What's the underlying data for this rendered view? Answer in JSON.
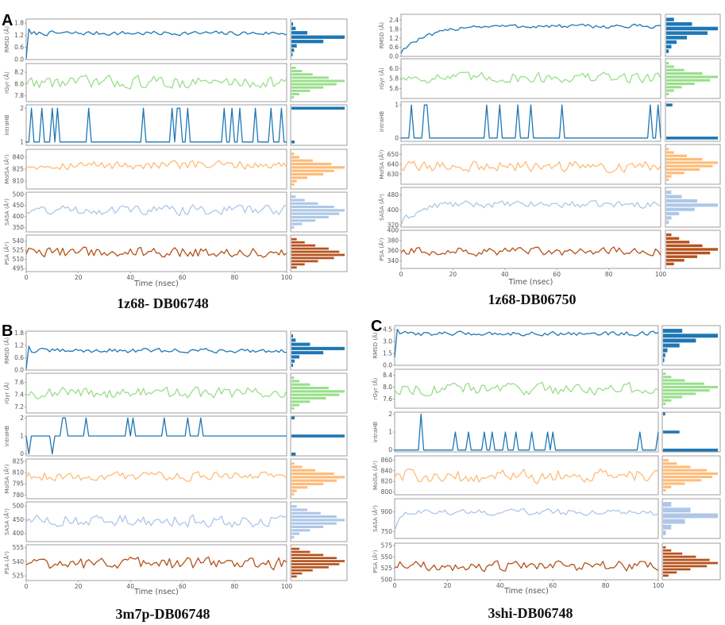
{
  "chart_data": [
    {
      "type": "line",
      "panel_label": "A",
      "caption": "1z68- DB06748",
      "xlabel": "Time (nsec)",
      "xlim": [
        0,
        100
      ],
      "xticks": [
        "0",
        "20",
        "40",
        "60",
        "80",
        "100"
      ],
      "subplots": [
        {
          "ylabel": "RMSD (Å)",
          "color": "#1f77b4",
          "ylim": [
            0,
            2.0
          ],
          "yticks": [
            "0.0",
            "0.6",
            "1.2",
            "1.8"
          ],
          "mean": 1.3,
          "amp": 0.12,
          "start": 0.05,
          "hist_bins": [
            0.02,
            0.05,
            0.1,
            0.6,
            1.0,
            0.3,
            0.08,
            0.03
          ]
        },
        {
          "ylabel": "rGyr (Å)",
          "color": "#98df8a",
          "ylim": [
            7.7,
            8.35
          ],
          "yticks": [
            "7.8",
            "8.0",
            "8.2"
          ],
          "mean": 8.03,
          "amp": 0.12,
          "hist_bins": [
            0.05,
            0.15,
            0.35,
            0.6,
            0.85,
            1.0,
            0.7,
            0.4,
            0.2,
            0.08
          ]
        },
        {
          "ylabel": "intraHB",
          "color": "#1f77b4",
          "ylim": [
            0.9,
            2.1
          ],
          "yticks": [
            "1",
            "2"
          ],
          "discrete": [
            1,
            2
          ],
          "hist_bins": [
            0.06,
            1.0
          ]
        },
        {
          "ylabel": "MolSA (Å²)",
          "color": "#ffbb78",
          "ylim": [
            800,
            850
          ],
          "yticks": [
            "810",
            "825",
            "840"
          ],
          "mean": 830,
          "amp": 6,
          "hist_bins": [
            0.05,
            0.1,
            0.3,
            0.6,
            0.8,
            1.0,
            0.75,
            0.4,
            0.15,
            0.05
          ]
        },
        {
          "ylabel": "SASA (Å²)",
          "color": "#aec7e8",
          "ylim": [
            330,
            510
          ],
          "yticks": [
            "350",
            "400",
            "450",
            "500"
          ],
          "mean": 430,
          "amp": 25,
          "hist_bins": [
            0.05,
            0.2,
            0.45,
            0.7,
            0.9,
            1.0,
            0.8,
            0.5,
            0.25,
            0.08
          ]
        },
        {
          "ylabel": "PSA (Å²)",
          "color": "#b5521c",
          "ylim": [
            490,
            550
          ],
          "yticks": [
            "495",
            "510",
            "525",
            "540"
          ],
          "mean": 522,
          "amp": 9,
          "hist_bins": [
            0.1,
            0.25,
            0.5,
            0.8,
            1.0,
            0.9,
            0.7,
            0.45,
            0.25,
            0.1
          ]
        }
      ]
    },
    {
      "type": "line",
      "panel_label": "",
      "caption": "1z68-DB06750",
      "xlabel": "Time (nsec)",
      "xlim": [
        0,
        100
      ],
      "xticks": [
        "0",
        "20",
        "40",
        "60",
        "80",
        "100"
      ],
      "subplots": [
        {
          "ylabel": "RMSD (Å)",
          "color": "#1f77b4",
          "ylim": [
            0,
            2.8
          ],
          "yticks": [
            "0.0",
            "0.6",
            "1.2",
            "1.8",
            "2.4"
          ],
          "mean": 2.0,
          "amp": 0.15,
          "start": 0.2,
          "rise": 25,
          "hist_bins": [
            0.05,
            0.1,
            0.2,
            0.4,
            0.8,
            1.0,
            0.5,
            0.15
          ]
        },
        {
          "ylabel": "rGyr (Å)",
          "color": "#98df8a",
          "ylim": [
            5.4,
            6.2
          ],
          "yticks": [
            "5.6",
            "5.8",
            "6.0"
          ],
          "mean": 5.82,
          "amp": 0.12,
          "hist_bins": [
            0.05,
            0.15,
            0.3,
            0.55,
            0.85,
            1.0,
            0.7,
            0.35,
            0.15,
            0.05
          ]
        },
        {
          "ylabel": "intraHB",
          "color": "#1f77b4",
          "ylim": [
            -0.1,
            1.1
          ],
          "yticks": [
            "0",
            "1"
          ],
          "discrete": [
            0,
            1
          ],
          "hist_bins": [
            1.0,
            0.12
          ]
        },
        {
          "ylabel": "MolSA (Å²)",
          "color": "#ffbb78",
          "ylim": [
            620,
            660
          ],
          "yticks": [
            "630",
            "640",
            "650"
          ],
          "mean": 638,
          "amp": 6,
          "hist_bins": [
            0.05,
            0.1,
            0.35,
            0.65,
            0.9,
            1.0,
            0.7,
            0.4,
            0.15,
            0.05
          ]
        },
        {
          "ylabel": "SASA (Å²)",
          "color": "#aec7e8",
          "ylim": [
            310,
            520
          ],
          "yticks": [
            "320",
            "400",
            "480"
          ],
          "mean": 430,
          "amp": 20,
          "start": 320,
          "rise": 15,
          "hist_bins": [
            0.05,
            0.1,
            0.25,
            0.55,
            1.0,
            0.6,
            0.3,
            0.1
          ]
        },
        {
          "ylabel": "PSA (Å²)",
          "color": "#b5521c",
          "ylim": [
            325,
            400
          ],
          "yticks": [
            "340",
            "360",
            "380",
            "400"
          ],
          "mean": 358,
          "amp": 9,
          "hist_bins": [
            0.15,
            0.35,
            0.6,
            0.85,
            1.0,
            0.7,
            0.45,
            0.25,
            0.1
          ]
        }
      ]
    },
    {
      "type": "line",
      "panel_label": "B",
      "caption": "3m7p-DB06748",
      "xlabel": "Time (nsec)",
      "xlim": [
        0,
        100
      ],
      "xticks": [
        "0",
        "20",
        "40",
        "60",
        "80",
        "100"
      ],
      "subplots": [
        {
          "ylabel": "RMSD (Å)",
          "color": "#1f77b4",
          "ylim": [
            0,
            1.9
          ],
          "yticks": [
            "0.0",
            "0.6",
            "1.2",
            "1.8"
          ],
          "mean": 0.95,
          "amp": 0.12,
          "start": 0.05,
          "hist_bins": [
            0.03,
            0.06,
            0.15,
            0.6,
            1.0,
            0.35,
            0.08,
            0.03
          ]
        },
        {
          "ylabel": "rGyr (Å)",
          "color": "#98df8a",
          "ylim": [
            7.1,
            7.75
          ],
          "yticks": [
            "7.2",
            "7.4",
            "7.6"
          ],
          "mean": 7.43,
          "amp": 0.1,
          "hist_bins": [
            0.05,
            0.15,
            0.35,
            0.65,
            0.9,
            1.0,
            0.7,
            0.35,
            0.15,
            0.05
          ]
        },
        {
          "ylabel": "intraHB",
          "color": "#1f77b4",
          "ylim": [
            -0.1,
            2.1
          ],
          "yticks": [
            "0",
            "1",
            "2"
          ],
          "discrete": [
            1,
            2,
            0
          ],
          "hist_bins": [
            0.08,
            1.0,
            0.06
          ]
        },
        {
          "ylabel": "MolSA (Å²)",
          "color": "#ffbb78",
          "ylim": [
            775,
            828
          ],
          "yticks": [
            "780",
            "795",
            "810",
            "825"
          ],
          "mean": 805,
          "amp": 7,
          "hist_bins": [
            0.05,
            0.1,
            0.3,
            0.6,
            0.85,
            1.0,
            0.8,
            0.45,
            0.2,
            0.05
          ]
        },
        {
          "ylabel": "SASA (Å²)",
          "color": "#aec7e8",
          "ylim": [
            370,
            515
          ],
          "yticks": [
            "400",
            "450",
            "500"
          ],
          "mean": 445,
          "amp": 25,
          "hist_bins": [
            0.05,
            0.15,
            0.35,
            0.6,
            0.85,
            1.0,
            0.85,
            0.55,
            0.3,
            0.1
          ]
        },
        {
          "ylabel": "PSA (Å²)",
          "color": "#b5521c",
          "ylim": [
            520,
            558
          ],
          "yticks": [
            "525",
            "540",
            "555"
          ],
          "mean": 538,
          "amp": 7,
          "hist_bins": [
            0.1,
            0.2,
            0.4,
            0.7,
            0.9,
            1.0,
            0.85,
            0.6,
            0.35,
            0.15
          ]
        }
      ]
    },
    {
      "type": "line",
      "panel_label": "C",
      "caption": "3shi-DB06748",
      "xlabel": "Time (nsec)",
      "xlim": [
        0,
        100
      ],
      "xticks": [
        "0",
        "20",
        "40",
        "60",
        "80",
        "100"
      ],
      "subplots": [
        {
          "ylabel": "RMSD (Å)",
          "color": "#1f77b4",
          "ylim": [
            0,
            5.0
          ],
          "yticks": [
            "0.0",
            "1.5",
            "3.0",
            "4.5"
          ],
          "mean": 4.0,
          "amp": 0.3,
          "start": 1.0,
          "hist_bins": [
            0.02,
            0.04,
            0.08,
            0.3,
            0.6,
            1.0,
            0.35
          ]
        },
        {
          "ylabel": "rGyr (Å)",
          "color": "#98df8a",
          "ylim": [
            7.3,
            8.6
          ],
          "yticks": [
            "7.6",
            "8.0",
            "8.4"
          ],
          "mean": 7.95,
          "amp": 0.22,
          "hist_bins": [
            0.05,
            0.15,
            0.35,
            0.6,
            0.85,
            1.0,
            0.75,
            0.4,
            0.15,
            0.05
          ]
        },
        {
          "ylabel": "intraHB",
          "color": "#1f77b4",
          "ylim": [
            -0.1,
            2.1
          ],
          "yticks": [
            "0",
            "1",
            "2"
          ],
          "discrete": [
            0,
            1,
            2
          ],
          "hist_bins": [
            1.0,
            0.3,
            0.04
          ]
        },
        {
          "ylabel": "MolSA (Å²)",
          "color": "#ffbb78",
          "ylim": [
            795,
            868
          ],
          "yticks": [
            "800",
            "820",
            "840",
            "860"
          ],
          "mean": 830,
          "amp": 14,
          "hist_bins": [
            0.05,
            0.15,
            0.4,
            0.7,
            0.9,
            1.0,
            0.8,
            0.5,
            0.25,
            0.1
          ]
        },
        {
          "ylabel": "SASA (Å²)",
          "color": "#aec7e8",
          "ylim": [
            700,
            1000
          ],
          "yticks": [
            "750",
            "900"
          ],
          "mean": 900,
          "amp": 25,
          "start": 760,
          "rise": 4,
          "hist_bins": [
            0.05,
            0.15,
            0.4,
            1.0,
            0.5,
            0.15
          ]
        },
        {
          "ylabel": "PSA (Å²)",
          "color": "#b5521c",
          "ylim": [
            500,
            580
          ],
          "yticks": [
            "500",
            "525",
            "550",
            "575"
          ],
          "mean": 530,
          "amp": 12,
          "hist_bins": [
            0.1,
            0.25,
            0.5,
            0.8,
            1.0,
            0.85,
            0.6,
            0.35,
            0.15,
            0.05
          ]
        }
      ]
    }
  ]
}
